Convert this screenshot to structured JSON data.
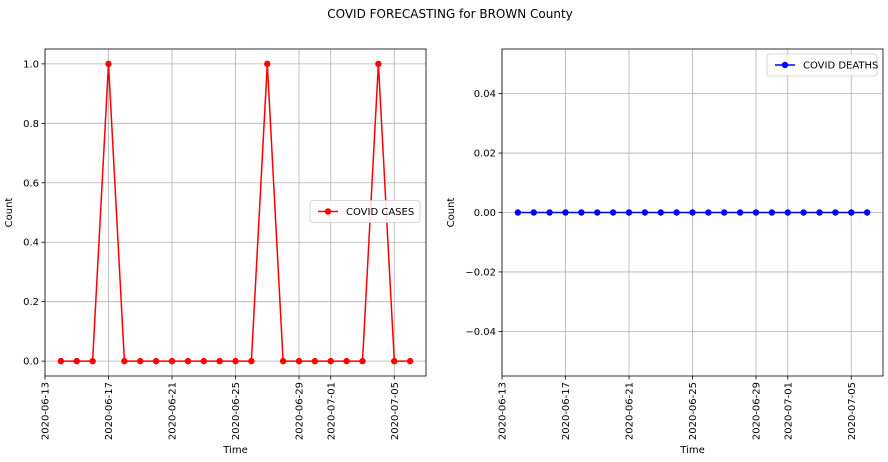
{
  "figure": {
    "title": "COVID FORECASTING for BROWN County"
  },
  "chart_data": [
    {
      "type": "line",
      "title": "",
      "xlabel": "Time",
      "ylabel": "Count",
      "x_is_date": true,
      "xlim": [
        "2020-06-13",
        "2020-07-07"
      ],
      "ylim": [
        -0.05,
        1.05
      ],
      "xticks": [
        "2020-06-13",
        "2020-06-17",
        "2020-06-21",
        "2020-06-25",
        "2020-06-29",
        "2020-07-01",
        "2020-07-05"
      ],
      "yticks": [
        "0.0",
        "0.2",
        "0.4",
        "0.6",
        "0.8",
        "1.0"
      ],
      "grid": true,
      "legend_position": "center-right",
      "x": [
        "2020-06-14",
        "2020-06-15",
        "2020-06-16",
        "2020-06-17",
        "2020-06-18",
        "2020-06-19",
        "2020-06-20",
        "2020-06-21",
        "2020-06-22",
        "2020-06-23",
        "2020-06-24",
        "2020-06-25",
        "2020-06-26",
        "2020-06-27",
        "2020-06-28",
        "2020-06-29",
        "2020-06-30",
        "2020-07-01",
        "2020-07-02",
        "2020-07-03",
        "2020-07-04",
        "2020-07-05",
        "2020-07-06"
      ],
      "series": [
        {
          "name": "COVID CASES",
          "color": "#ff0000",
          "values": [
            0,
            0,
            0,
            1,
            0,
            0,
            0,
            0,
            0,
            0,
            0,
            0,
            0,
            1,
            0,
            0,
            0,
            0,
            0,
            0,
            1,
            0,
            0
          ]
        }
      ]
    },
    {
      "type": "line",
      "title": "",
      "xlabel": "Time",
      "ylabel": "Count",
      "x_is_date": true,
      "xlim": [
        "2020-06-13",
        "2020-07-07"
      ],
      "ylim": [
        -0.055,
        0.055
      ],
      "xticks": [
        "2020-06-13",
        "2020-06-17",
        "2020-06-21",
        "2020-06-25",
        "2020-06-29",
        "2020-07-01",
        "2020-07-05"
      ],
      "yticks": [
        "−0.04",
        "−0.02",
        "0.00",
        "0.02",
        "0.04"
      ],
      "grid": true,
      "legend_position": "top-right",
      "x": [
        "2020-06-14",
        "2020-06-15",
        "2020-06-16",
        "2020-06-17",
        "2020-06-18",
        "2020-06-19",
        "2020-06-20",
        "2020-06-21",
        "2020-06-22",
        "2020-06-23",
        "2020-06-24",
        "2020-06-25",
        "2020-06-26",
        "2020-06-27",
        "2020-06-28",
        "2020-06-29",
        "2020-06-30",
        "2020-07-01",
        "2020-07-02",
        "2020-07-03",
        "2020-07-04",
        "2020-07-05",
        "2020-07-06"
      ],
      "series": [
        {
          "name": "COVID DEATHS",
          "color": "#0000ff",
          "values": [
            0,
            0,
            0,
            0,
            0,
            0,
            0,
            0,
            0,
            0,
            0,
            0,
            0,
            0,
            0,
            0,
            0,
            0,
            0,
            0,
            0,
            0,
            0
          ]
        }
      ]
    }
  ]
}
